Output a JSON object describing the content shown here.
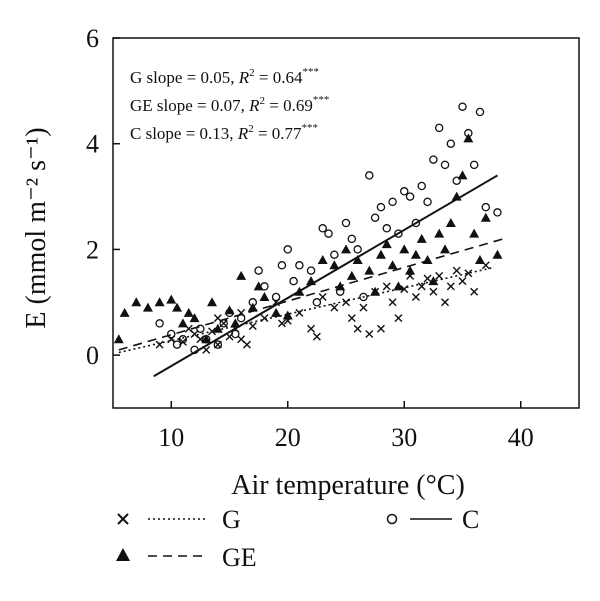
{
  "chart_data": {
    "type": "scatter",
    "title": "",
    "xlabel": "Air temperature (°C)",
    "ylabel": "E (mmol m⁻² s⁻¹)",
    "xlim": [
      5,
      45
    ],
    "ylim": [
      -1,
      6
    ],
    "xticks": [
      10,
      20,
      30,
      40
    ],
    "yticks": [
      0,
      2,
      4,
      6
    ],
    "grid": false,
    "legend_position": "bottom",
    "annotations": [
      {
        "label": "G slope = 0.05, ",
        "r2": "0.64",
        "stars": "***"
      },
      {
        "label": "GE slope = 0.07, ",
        "r2": "0.69",
        "stars": "***"
      },
      {
        "label": "C slope = 0.13, ",
        "r2": "0.77",
        "stars": "***"
      }
    ],
    "series": [
      {
        "name": "G",
        "marker": "cross",
        "line_style": "dotted",
        "slope": 0.05,
        "fit": {
          "x": [
            5.5,
            37.5
          ],
          "y": [
            0.05,
            1.65
          ]
        },
        "points": [
          [
            9,
            0.2
          ],
          [
            10,
            0.3
          ],
          [
            11,
            0.25
          ],
          [
            12,
            0.4
          ],
          [
            12.5,
            0.3
          ],
          [
            13,
            0.1
          ],
          [
            13.5,
            0.45
          ],
          [
            14,
            0.2
          ],
          [
            14.5,
            0.6
          ],
          [
            15,
            0.35
          ],
          [
            15.5,
            0.5
          ],
          [
            16,
            0.3
          ],
          [
            16.5,
            0.2
          ],
          [
            17,
            0.55
          ],
          [
            18,
            0.7
          ],
          [
            19,
            1.0
          ],
          [
            20,
            0.65
          ],
          [
            21,
            0.8
          ],
          [
            22,
            0.5
          ],
          [
            22.5,
            0.35
          ],
          [
            23,
            1.1
          ],
          [
            24,
            0.9
          ],
          [
            25,
            1.0
          ],
          [
            25.5,
            0.7
          ],
          [
            26,
            0.5
          ],
          [
            27,
            0.4
          ],
          [
            27.5,
            1.2
          ],
          [
            28,
            0.5
          ],
          [
            28.5,
            1.3
          ],
          [
            29,
            1.0
          ],
          [
            30,
            1.25
          ],
          [
            30.5,
            1.5
          ],
          [
            31,
            1.1
          ],
          [
            31.5,
            1.3
          ],
          [
            32,
            1.45
          ],
          [
            32.5,
            1.2
          ],
          [
            33,
            1.5
          ],
          [
            33.5,
            1.0
          ],
          [
            34,
            1.3
          ],
          [
            34.5,
            1.6
          ],
          [
            35,
            1.4
          ],
          [
            35.5,
            1.55
          ],
          [
            36,
            1.2
          ],
          [
            37,
            1.7
          ],
          [
            11.5,
            0.5
          ],
          [
            14,
            0.7
          ],
          [
            16,
            0.8
          ],
          [
            19.5,
            0.6
          ],
          [
            26.5,
            0.9
          ],
          [
            29.5,
            0.7
          ]
        ]
      },
      {
        "name": "GE",
        "marker": "triangle",
        "line_style": "dashed",
        "slope": 0.07,
        "fit": {
          "x": [
            5.5,
            38.5
          ],
          "y": [
            0.1,
            2.2
          ]
        },
        "points": [
          [
            5.5,
            0.3
          ],
          [
            6,
            0.8
          ],
          [
            7,
            1.0
          ],
          [
            8,
            0.9
          ],
          [
            9,
            1.0
          ],
          [
            10,
            1.05
          ],
          [
            10.5,
            0.9
          ],
          [
            11,
            0.6
          ],
          [
            11.5,
            0.8
          ],
          [
            12,
            0.7
          ],
          [
            13,
            0.3
          ],
          [
            14,
            0.5
          ],
          [
            15,
            0.85
          ],
          [
            15.5,
            0.6
          ],
          [
            16,
            1.5
          ],
          [
            17,
            0.9
          ],
          [
            18,
            1.1
          ],
          [
            19,
            0.8
          ],
          [
            20,
            0.75
          ],
          [
            21,
            1.2
          ],
          [
            22,
            1.4
          ],
          [
            23,
            1.8
          ],
          [
            24,
            1.7
          ],
          [
            24.5,
            1.3
          ],
          [
            25,
            2.0
          ],
          [
            25.5,
            1.5
          ],
          [
            26,
            1.8
          ],
          [
            27,
            1.6
          ],
          [
            27.5,
            1.2
          ],
          [
            28,
            1.9
          ],
          [
            28.5,
            2.1
          ],
          [
            29,
            1.7
          ],
          [
            29.5,
            1.3
          ],
          [
            30,
            2.0
          ],
          [
            30.5,
            1.6
          ],
          [
            31,
            1.9
          ],
          [
            31.5,
            2.2
          ],
          [
            32,
            1.8
          ],
          [
            32.5,
            1.4
          ],
          [
            33,
            2.3
          ],
          [
            33.5,
            2.0
          ],
          [
            34,
            2.5
          ],
          [
            34.5,
            3.0
          ],
          [
            35,
            3.4
          ],
          [
            35.5,
            4.1
          ],
          [
            36,
            2.3
          ],
          [
            36.5,
            1.8
          ],
          [
            37,
            2.6
          ],
          [
            38,
            1.9
          ],
          [
            13.5,
            1.0
          ],
          [
            17.5,
            1.3
          ]
        ]
      },
      {
        "name": "C",
        "marker": "circle",
        "line_style": "solid",
        "slope": 0.13,
        "fit": {
          "x": [
            8.5,
            38
          ],
          "y": [
            -0.4,
            3.4
          ]
        },
        "points": [
          [
            9,
            0.6
          ],
          [
            10,
            0.4
          ],
          [
            10.5,
            0.2
          ],
          [
            11,
            0.3
          ],
          [
            12,
            0.1
          ],
          [
            12.5,
            0.5
          ],
          [
            13,
            0.3
          ],
          [
            14,
            0.2
          ],
          [
            14.5,
            0.6
          ],
          [
            15,
            0.8
          ],
          [
            15.5,
            0.4
          ],
          [
            16,
            0.7
          ],
          [
            17,
            1.0
          ],
          [
            17.5,
            1.6
          ],
          [
            18,
            1.3
          ],
          [
            19,
            1.1
          ],
          [
            19.5,
            1.7
          ],
          [
            20,
            2.0
          ],
          [
            20.5,
            1.4
          ],
          [
            21,
            1.7
          ],
          [
            22,
            1.6
          ],
          [
            22.5,
            1.0
          ],
          [
            23,
            2.4
          ],
          [
            23.5,
            2.3
          ],
          [
            24,
            1.9
          ],
          [
            24.5,
            1.2
          ],
          [
            25,
            2.5
          ],
          [
            25.5,
            2.2
          ],
          [
            26,
            2.0
          ],
          [
            26.5,
            1.1
          ],
          [
            27,
            3.4
          ],
          [
            27.5,
            2.6
          ],
          [
            28,
            2.8
          ],
          [
            28.5,
            2.4
          ],
          [
            29,
            2.9
          ],
          [
            29.5,
            2.3
          ],
          [
            30,
            3.1
          ],
          [
            30.5,
            3.0
          ],
          [
            31,
            2.5
          ],
          [
            31.5,
            3.2
          ],
          [
            32,
            2.9
          ],
          [
            32.5,
            3.7
          ],
          [
            33,
            4.3
          ],
          [
            33.5,
            3.6
          ],
          [
            34,
            4.0
          ],
          [
            34.5,
            3.3
          ],
          [
            35,
            4.7
          ],
          [
            35.5,
            4.2
          ],
          [
            36,
            3.6
          ],
          [
            36.5,
            4.6
          ],
          [
            37,
            2.8
          ],
          [
            38,
            2.7
          ]
        ]
      }
    ]
  },
  "legend": [
    {
      "name": "G",
      "marker": "cross",
      "line_style": "dotted"
    },
    {
      "name": "C",
      "marker": "circle",
      "line_style": "solid"
    },
    {
      "name": "GE",
      "marker": "triangle",
      "line_style": "dashed"
    }
  ]
}
